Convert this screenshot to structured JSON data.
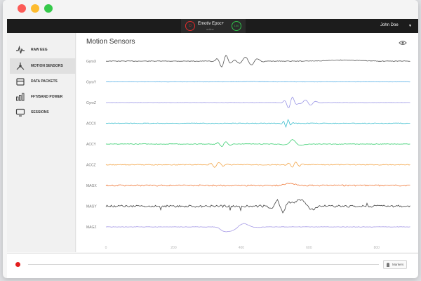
{
  "window": {
    "controls": [
      "close",
      "minimize",
      "maximize"
    ]
  },
  "header": {
    "device_name": "Emotiv Epoc+",
    "device_status": "online",
    "signal_value": "100",
    "user_name": "John Doe",
    "user_menu_icon": "caret-down-icon"
  },
  "sidebar": {
    "items": [
      {
        "label": "RAW EEG",
        "icon": "wave-icon",
        "active": false
      },
      {
        "label": "MOTION SENSORS",
        "icon": "nodes-icon",
        "active": true
      },
      {
        "label": "DATA PACKETS",
        "icon": "package-icon",
        "active": false
      },
      {
        "label": "FFT/BAND POWER",
        "icon": "bars-icon",
        "active": false
      },
      {
        "label": "SESSIONS",
        "icon": "monitor-icon",
        "active": false
      }
    ]
  },
  "main": {
    "title": "Motion Sensors",
    "view_icon": "eye-icon"
  },
  "chart_data": {
    "type": "line",
    "series": [
      {
        "name": "GyroX",
        "color": "#555555"
      },
      {
        "name": "GyroY",
        "color": "#56aee6"
      },
      {
        "name": "GyroZ",
        "color": "#9a96e6"
      },
      {
        "name": "ACCX",
        "color": "#3fbfcf"
      },
      {
        "name": "ACCY",
        "color": "#3ccf72"
      },
      {
        "name": "ACCZ",
        "color": "#f3a64a"
      },
      {
        "name": "MAGX",
        "color": "#f07a3a"
      },
      {
        "name": "MAGY",
        "color": "#444444"
      },
      {
        "name": "MAGZ",
        "color": "#a69ae6"
      }
    ],
    "x_ticks": [
      "0",
      "200",
      "400",
      "600",
      "800"
    ],
    "xlim": [
      0,
      900
    ],
    "grid": false,
    "legend": "left"
  },
  "footer": {
    "markers_label": "Markers"
  }
}
